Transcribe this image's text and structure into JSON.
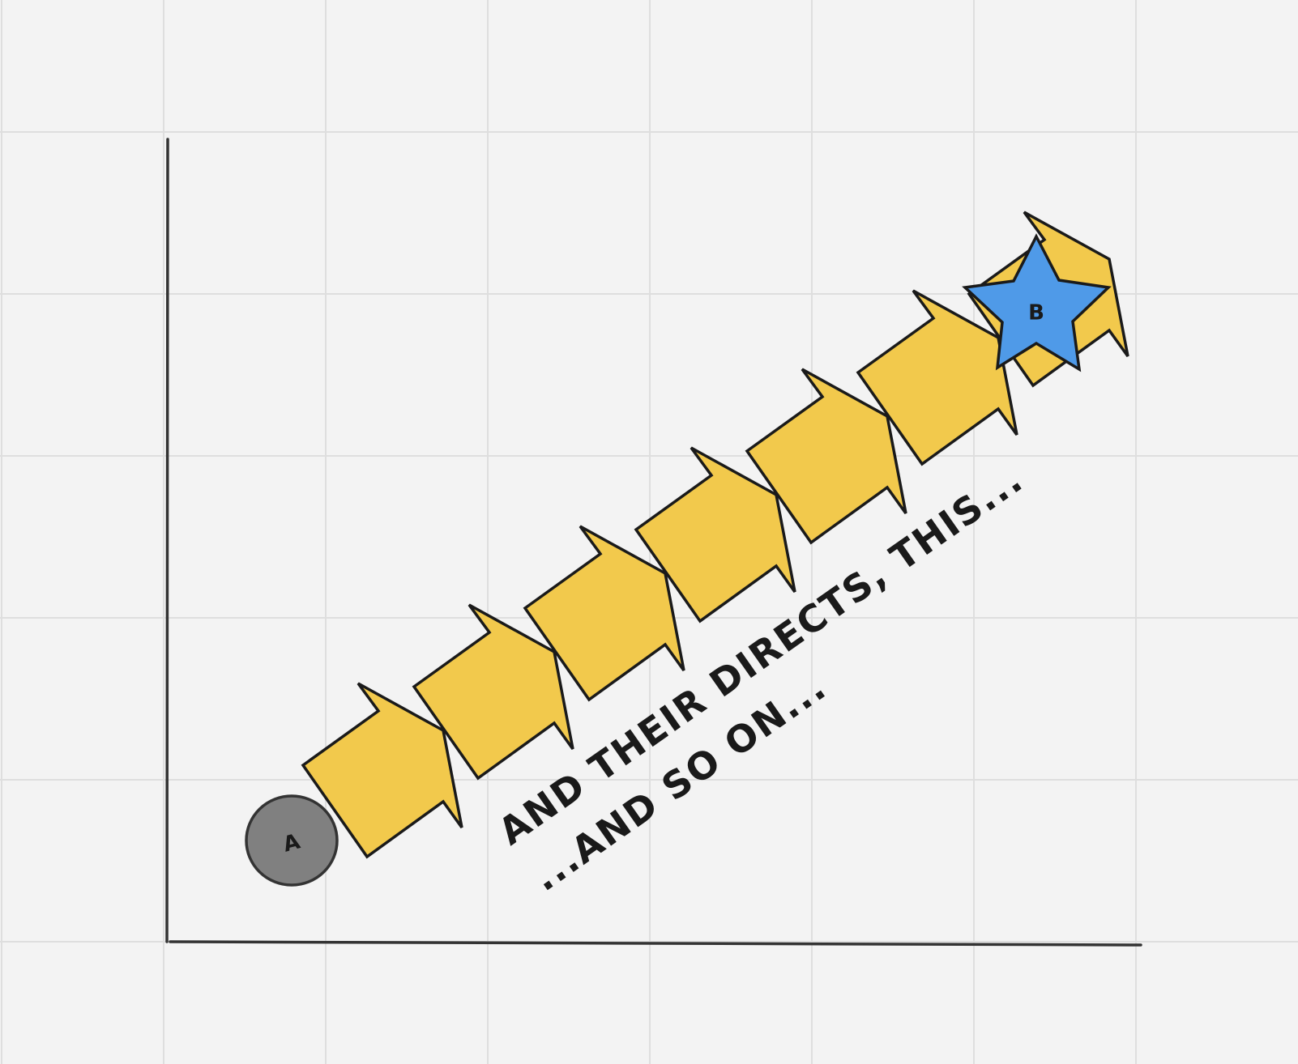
{
  "colors": {
    "background": "#f3f3f3",
    "grid": "#dedede",
    "axis": "#333333",
    "outline": "#1a1a1a",
    "start_node_fill": "#808080",
    "arrow_fill": "#f2c94c",
    "end_node_fill": "#4f9ae8"
  },
  "diagram": {
    "start_node": {
      "label": "A",
      "shape": "circle"
    },
    "end_node": {
      "label": "B",
      "shape": "star"
    },
    "steps": [
      {
        "shape": "chevron-arrow"
      },
      {
        "shape": "chevron-arrow"
      },
      {
        "shape": "chevron-arrow"
      },
      {
        "shape": "chevron-arrow"
      },
      {
        "shape": "chevron-arrow"
      },
      {
        "shape": "chevron-arrow"
      },
      {
        "shape": "chevron-arrow"
      }
    ],
    "annotations": {
      "line1": "AND THEIR DIRECTS, THIS...",
      "line2": "...AND SO ON..."
    }
  }
}
